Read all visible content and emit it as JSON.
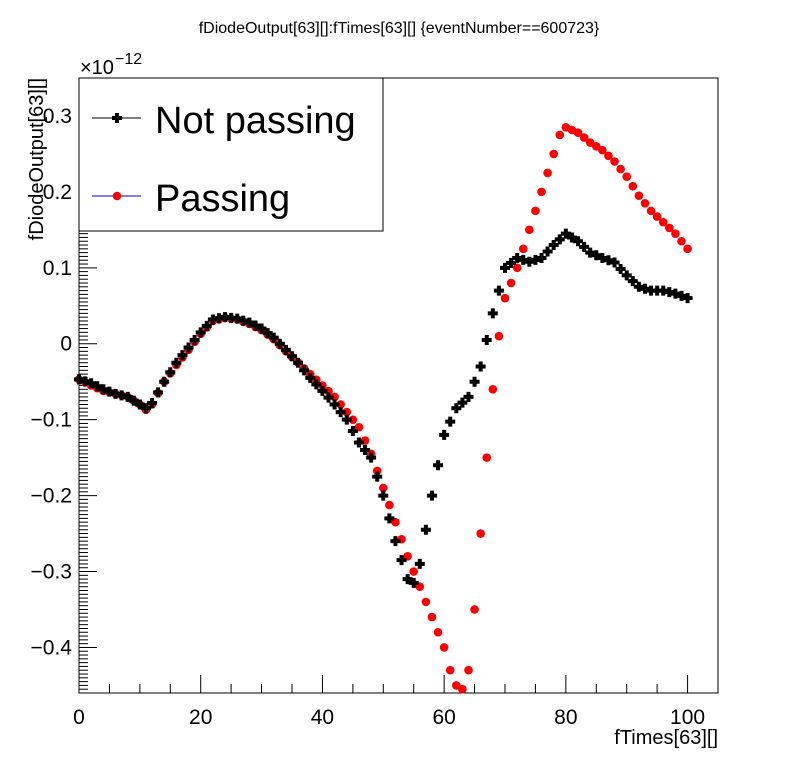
{
  "chart_data": {
    "type": "scatter",
    "title": "fDiodeOutput[63][]:fTimes[63][] {eventNumber==600723}",
    "xlabel": "fTimes[63][]",
    "ylabel": "fDiodeOutput[63][]",
    "y_exponent_label": "×10",
    "y_exponent_power": "−12",
    "xlim": [
      0,
      105
    ],
    "ylim": [
      -0.46,
      0.35
    ],
    "x_ticks": [
      "0",
      "20",
      "40",
      "60",
      "80",
      "100"
    ],
    "y_ticks": [
      "−0.4",
      "−0.3",
      "−0.2",
      "−0.1",
      "0",
      "0.1",
      "0.2",
      "0.3"
    ],
    "legend": {
      "placement": "top-left",
      "entries": [
        "Not passing",
        "Passing"
      ]
    },
    "series": [
      {
        "name": "Not passing",
        "color": "#000000",
        "marker": "cross",
        "points": [
          [
            0,
            -0.047
          ],
          [
            2,
            -0.052
          ],
          [
            4,
            -0.06
          ],
          [
            6,
            -0.066
          ],
          [
            8,
            -0.07
          ],
          [
            10,
            -0.08
          ],
          [
            11,
            -0.085
          ],
          [
            12,
            -0.078
          ],
          [
            14,
            -0.05
          ],
          [
            16,
            -0.025
          ],
          [
            18,
            -0.005
          ],
          [
            20,
            0.015
          ],
          [
            22,
            0.032
          ],
          [
            24,
            0.035
          ],
          [
            26,
            0.033
          ],
          [
            28,
            0.028
          ],
          [
            30,
            0.02
          ],
          [
            32,
            0.008
          ],
          [
            34,
            -0.008
          ],
          [
            36,
            -0.025
          ],
          [
            38,
            -0.045
          ],
          [
            40,
            -0.062
          ],
          [
            42,
            -0.08
          ],
          [
            44,
            -0.1
          ],
          [
            46,
            -0.13
          ],
          [
            48,
            -0.15
          ],
          [
            50,
            -0.2
          ],
          [
            52,
            -0.26
          ],
          [
            54,
            -0.31
          ],
          [
            55,
            -0.315
          ],
          [
            56,
            -0.29
          ],
          [
            58,
            -0.2
          ],
          [
            60,
            -0.12
          ],
          [
            62,
            -0.085
          ],
          [
            64,
            -0.07
          ],
          [
            66,
            -0.03
          ],
          [
            68,
            0.04
          ],
          [
            70,
            0.1
          ],
          [
            72,
            0.113
          ],
          [
            74,
            0.108
          ],
          [
            76,
            0.113
          ],
          [
            78,
            0.13
          ],
          [
            80,
            0.145
          ],
          [
            82,
            0.135
          ],
          [
            84,
            0.12
          ],
          [
            86,
            0.113
          ],
          [
            88,
            0.107
          ],
          [
            90,
            0.09
          ],
          [
            92,
            0.075
          ],
          [
            94,
            0.07
          ],
          [
            96,
            0.07
          ],
          [
            98,
            0.066
          ],
          [
            100,
            0.06
          ]
        ]
      },
      {
        "name": "Passing",
        "color": "#ff0000",
        "marker": "circle",
        "points": [
          [
            0,
            -0.047
          ],
          [
            2,
            -0.055
          ],
          [
            4,
            -0.062
          ],
          [
            6,
            -0.066
          ],
          [
            8,
            -0.07
          ],
          [
            10,
            -0.08
          ],
          [
            11,
            -0.087
          ],
          [
            12,
            -0.08
          ],
          [
            14,
            -0.05
          ],
          [
            16,
            -0.028
          ],
          [
            18,
            -0.008
          ],
          [
            20,
            0.013
          ],
          [
            22,
            0.03
          ],
          [
            24,
            0.034
          ],
          [
            26,
            0.032
          ],
          [
            28,
            0.026
          ],
          [
            30,
            0.018
          ],
          [
            32,
            0.006
          ],
          [
            34,
            -0.01
          ],
          [
            36,
            -0.025
          ],
          [
            38,
            -0.04
          ],
          [
            40,
            -0.055
          ],
          [
            42,
            -0.07
          ],
          [
            44,
            -0.09
          ],
          [
            46,
            -0.11
          ],
          [
            48,
            -0.145
          ],
          [
            50,
            -0.19
          ],
          [
            52,
            -0.235
          ],
          [
            54,
            -0.28
          ],
          [
            56,
            -0.32
          ],
          [
            58,
            -0.36
          ],
          [
            60,
            -0.4
          ],
          [
            61,
            -0.43
          ],
          [
            62,
            -0.45
          ],
          [
            63,
            -0.455
          ],
          [
            64,
            -0.43
          ],
          [
            65,
            -0.35
          ],
          [
            66,
            -0.25
          ],
          [
            67,
            -0.15
          ],
          [
            68,
            -0.06
          ],
          [
            69,
            0.01
          ],
          [
            70,
            0.06
          ],
          [
            72,
            0.1
          ],
          [
            74,
            0.15
          ],
          [
            76,
            0.2
          ],
          [
            78,
            0.25
          ],
          [
            79,
            0.275
          ],
          [
            80,
            0.285
          ],
          [
            82,
            0.278
          ],
          [
            84,
            0.265
          ],
          [
            86,
            0.255
          ],
          [
            88,
            0.24
          ],
          [
            90,
            0.22
          ],
          [
            92,
            0.195
          ],
          [
            94,
            0.175
          ],
          [
            96,
            0.16
          ],
          [
            98,
            0.145
          ],
          [
            100,
            0.125
          ]
        ]
      }
    ]
  }
}
